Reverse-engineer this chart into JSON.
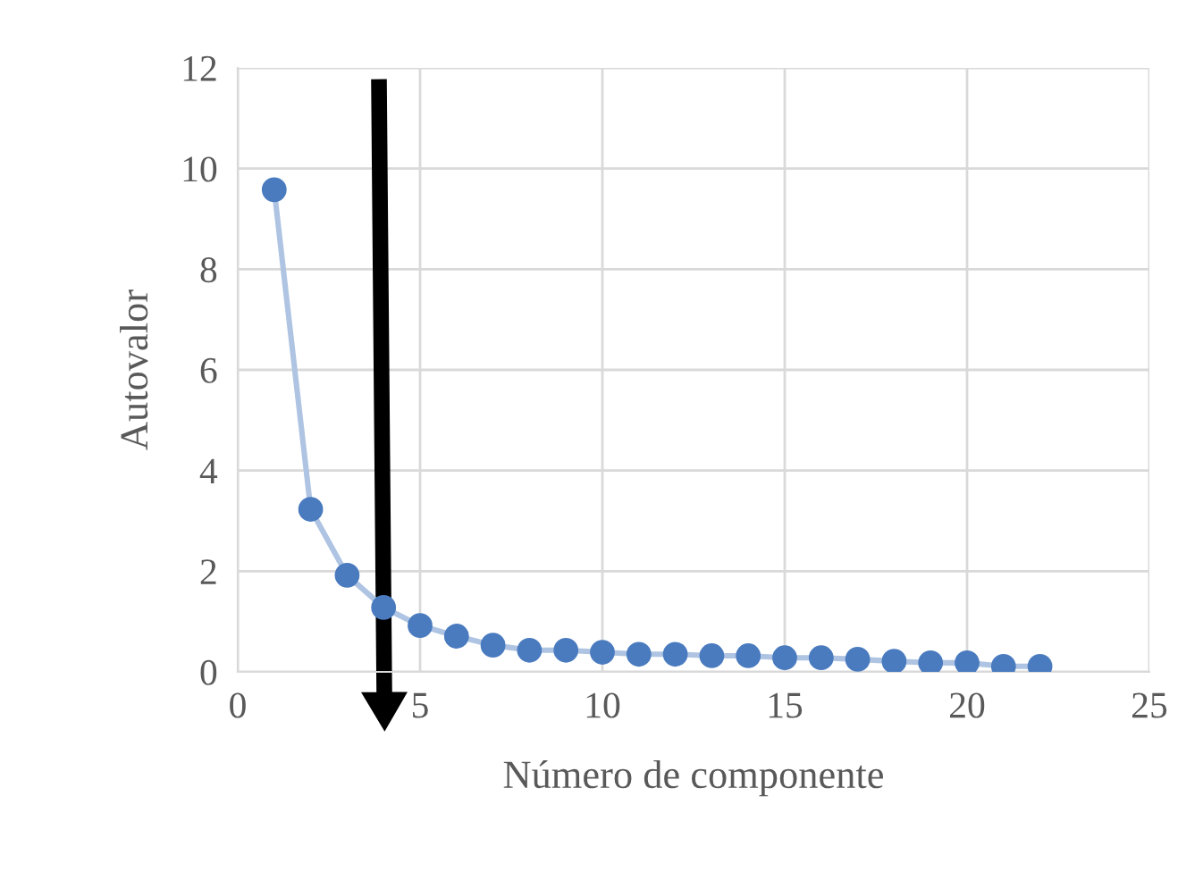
{
  "chart_data": {
    "type": "line",
    "xlabel": "Número de componente",
    "ylabel": "Autovalor",
    "x": [
      1,
      2,
      3,
      4,
      5,
      6,
      7,
      8,
      9,
      10,
      11,
      12,
      13,
      14,
      15,
      16,
      17,
      18,
      19,
      20,
      21,
      22
    ],
    "series": [
      {
        "color": "#4a7bbf",
        "values": [
          9.58,
          3.23,
          1.92,
          1.28,
          0.92,
          0.71,
          0.53,
          0.43,
          0.43,
          0.39,
          0.35,
          0.35,
          0.32,
          0.32,
          0.28,
          0.28,
          0.25,
          0.21,
          0.18,
          0.18,
          0.11,
          0.11
        ]
      }
    ],
    "xlim": [
      0,
      25
    ],
    "xticks": [
      0,
      5,
      10,
      15,
      20,
      25
    ],
    "ylim": [
      0,
      12
    ],
    "yticks": [
      0,
      2,
      4,
      6,
      8,
      10,
      12
    ],
    "grid": true,
    "marker": "circle",
    "line_style": "solid"
  }
}
